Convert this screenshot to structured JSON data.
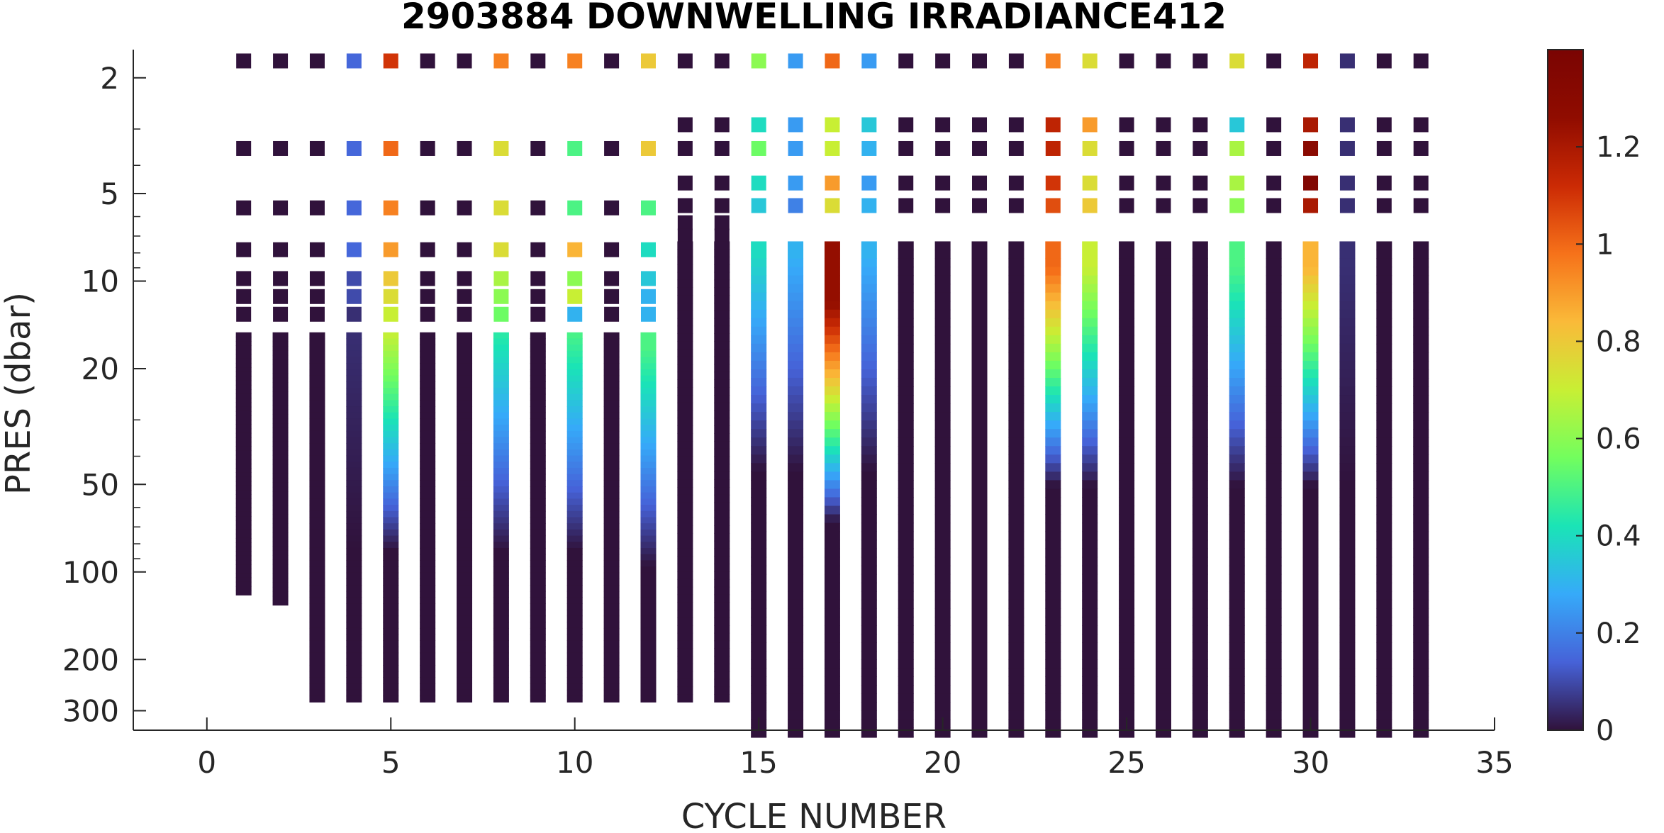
{
  "chart_data": {
    "type": "heatmap",
    "title": "2903884  DOWNWELLING IRRADIANCE412",
    "xlabel": "CYCLE NUMBER",
    "ylabel": "PRES (dbar)",
    "xlim": [
      -2,
      35
    ],
    "ylim": [
      1.6,
      350
    ],
    "y_scale": "log",
    "y_reversed": true,
    "x_ticks": [
      0,
      5,
      10,
      15,
      20,
      25,
      30,
      35
    ],
    "y_ticks": [
      2,
      5,
      10,
      20,
      50,
      100,
      200,
      300
    ],
    "colorbar": {
      "colormap": "turbo",
      "min": 0,
      "max": 1.4,
      "ticks": [
        0,
        0.2,
        0.4,
        0.6,
        0.8,
        1,
        1.2
      ]
    },
    "cycles": [
      {
        "cycle": 1,
        "max_pres": 120,
        "near_surface": [
          0,
          0,
          0,
          0,
          0,
          0,
          0
        ],
        "peak": 0,
        "peak_pres": 10
      },
      {
        "cycle": 2,
        "max_pres": 130,
        "near_surface": [
          0,
          0,
          0,
          0,
          0,
          0,
          0
        ],
        "peak": 0,
        "peak_pres": 10
      },
      {
        "cycle": 3,
        "max_pres": 280,
        "near_surface": [
          0,
          0,
          0,
          0,
          0,
          0,
          0
        ],
        "peak": 0,
        "peak_pres": 10
      },
      {
        "cycle": 4,
        "max_pres": 280,
        "near_surface": [
          0.15,
          0.15,
          0.15,
          0.15,
          0.1,
          0.1,
          0.05
        ],
        "peak": 0.05,
        "peak_pres": 15
      },
      {
        "cycle": 5,
        "max_pres": 280,
        "near_surface": [
          1.1,
          1.0,
          0.95,
          0.9,
          0.8,
          0.75,
          0.7
        ],
        "peak": 0.7,
        "peak_pres": 15
      },
      {
        "cycle": 6,
        "max_pres": 280,
        "near_surface": [
          0,
          0,
          0,
          0,
          0,
          0,
          0
        ],
        "peak": 0,
        "peak_pres": 10
      },
      {
        "cycle": 7,
        "max_pres": 280,
        "near_surface": [
          0,
          0,
          0,
          0,
          0,
          0,
          0
        ],
        "peak": 0,
        "peak_pres": 10
      },
      {
        "cycle": 8,
        "max_pres": 280,
        "near_surface": [
          0.95,
          0.75,
          0.75,
          0.75,
          0.65,
          0.6,
          0.55
        ],
        "peak": 0.45,
        "peak_pres": 15
      },
      {
        "cycle": 9,
        "max_pres": 280,
        "near_surface": [
          0,
          0,
          0,
          0,
          0,
          0,
          0
        ],
        "peak": 0,
        "peak_pres": 10
      },
      {
        "cycle": 10,
        "max_pres": 280,
        "near_surface": [
          0.95,
          0.5,
          0.5,
          0.85,
          0.6,
          0.7,
          0.3
        ],
        "peak": 0.5,
        "peak_pres": 15
      },
      {
        "cycle": 11,
        "max_pres": 280,
        "near_surface": [
          0,
          0,
          0,
          0,
          0,
          0,
          0
        ],
        "peak": 0,
        "peak_pres": 10
      },
      {
        "cycle": 12,
        "max_pres": 280,
        "near_surface": [
          0.8,
          0.8,
          0.5,
          0.4,
          0.35,
          0.3,
          0.3
        ],
        "peak": 0.5,
        "peak_pres": 17
      },
      {
        "cycle": 13,
        "max_pres": 280,
        "near_surface": [
          0,
          0,
          0,
          0,
          0,
          0,
          0,
          0
        ],
        "peak": 0,
        "peak_pres": 10
      },
      {
        "cycle": 14,
        "max_pres": 280,
        "near_surface": [
          0,
          0,
          0,
          0,
          0,
          0,
          0,
          0
        ],
        "peak": 0,
        "peak_pres": 10
      },
      {
        "cycle": 15,
        "max_pres": 420,
        "near_surface": [
          0.6,
          0.4,
          0.55,
          0.4,
          0.35
        ],
        "peak": 0.4,
        "peak_pres": 8
      },
      {
        "cycle": 16,
        "max_pres": 420,
        "near_surface": [
          0.25,
          0.25,
          0.25,
          0.25,
          0.2
        ],
        "peak": 0.3,
        "peak_pres": 8
      },
      {
        "cycle": 17,
        "max_pres": 420,
        "near_surface": [
          1.0,
          0.7,
          0.7,
          0.9,
          0.75
        ],
        "peak": 1.25,
        "peak_pres": 12
      },
      {
        "cycle": 18,
        "max_pres": 420,
        "near_surface": [
          0.25,
          0.35,
          0.3,
          0.25,
          0.3
        ],
        "peak": 0.3,
        "peak_pres": 8
      },
      {
        "cycle": 19,
        "max_pres": 420,
        "near_surface": [
          0,
          0,
          0,
          0,
          0
        ],
        "peak": 0,
        "peak_pres": 10
      },
      {
        "cycle": 20,
        "max_pres": 420,
        "near_surface": [
          0,
          0,
          0,
          0,
          0
        ],
        "peak": 0,
        "peak_pres": 10
      },
      {
        "cycle": 21,
        "max_pres": 420,
        "near_surface": [
          0,
          0,
          0,
          0,
          0
        ],
        "peak": 0,
        "peak_pres": 10
      },
      {
        "cycle": 22,
        "max_pres": 420,
        "near_surface": [
          0,
          0,
          0,
          0,
          0
        ],
        "peak": 0,
        "peak_pres": 10
      },
      {
        "cycle": 23,
        "max_pres": 420,
        "near_surface": [
          0.95,
          1.15,
          1.15,
          1.1,
          1.05
        ],
        "peak": 1.0,
        "peak_pres": 9
      },
      {
        "cycle": 24,
        "max_pres": 420,
        "near_surface": [
          0.75,
          0.9,
          0.75,
          0.75,
          0.8
        ],
        "peak": 0.7,
        "peak_pres": 9
      },
      {
        "cycle": 25,
        "max_pres": 420,
        "near_surface": [
          0,
          0,
          0,
          0,
          0
        ],
        "peak": 0,
        "peak_pres": 10
      },
      {
        "cycle": 26,
        "max_pres": 420,
        "near_surface": [
          0,
          0,
          0,
          0,
          0
        ],
        "peak": 0,
        "peak_pres": 10
      },
      {
        "cycle": 27,
        "max_pres": 420,
        "near_surface": [
          0,
          0,
          0,
          0,
          0
        ],
        "peak": 0,
        "peak_pres": 10
      },
      {
        "cycle": 28,
        "max_pres": 420,
        "near_surface": [
          0.75,
          0.35,
          0.65,
          0.65,
          0.6
        ],
        "peak": 0.5,
        "peak_pres": 9
      },
      {
        "cycle": 29,
        "max_pres": 420,
        "near_surface": [
          0,
          0,
          0,
          0,
          0
        ],
        "peak": 0,
        "peak_pres": 10
      },
      {
        "cycle": 30,
        "max_pres": 420,
        "near_surface": [
          1.15,
          1.2,
          1.3,
          1.35,
          1.2
        ],
        "peak": 0.85,
        "peak_pres": 9
      },
      {
        "cycle": 31,
        "max_pres": 420,
        "near_surface": [
          0.05,
          0.05,
          0.05,
          0.05,
          0.05
        ],
        "peak": 0.05,
        "peak_pres": 9
      },
      {
        "cycle": 32,
        "max_pres": 420,
        "near_surface": [
          0,
          0,
          0,
          0,
          0
        ],
        "peak": 0,
        "peak_pres": 10
      },
      {
        "cycle": 33,
        "max_pres": 420,
        "near_surface": [
          0,
          0,
          0,
          0,
          0
        ],
        "peak": 0,
        "peak_pres": 10
      }
    ]
  }
}
